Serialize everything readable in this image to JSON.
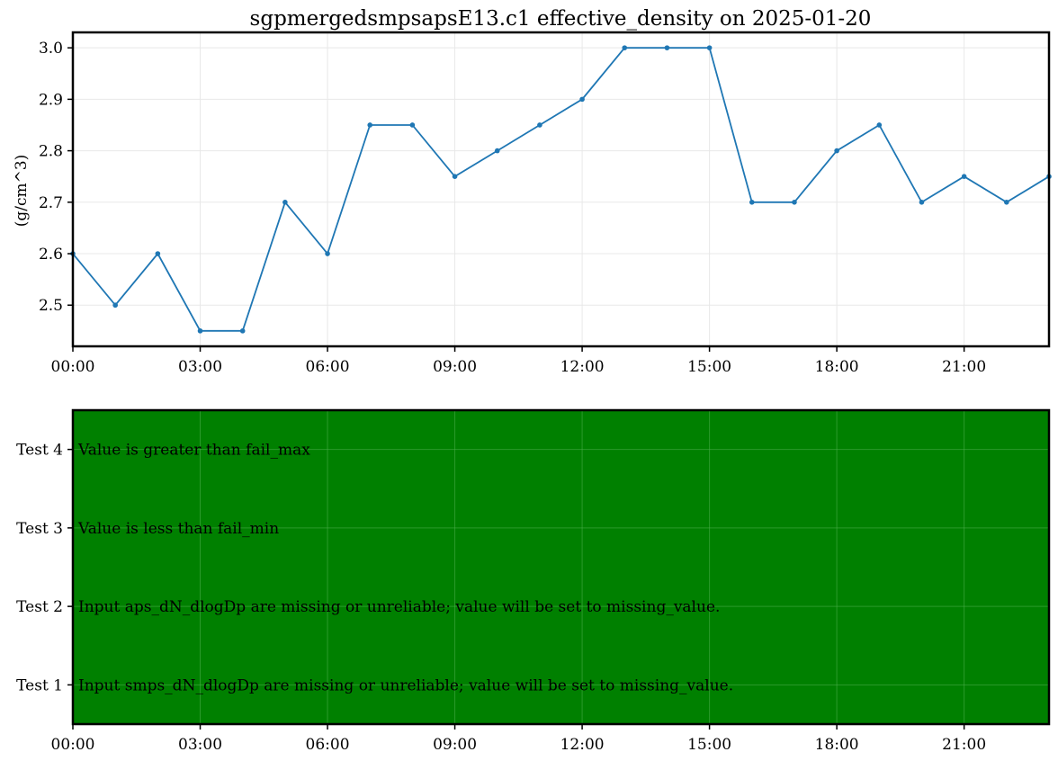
{
  "chart_data": [
    {
      "type": "line",
      "title": "sgpmergedsmpsapsE13.c1 effective_density on 2025-01-20",
      "xlabel": "",
      "ylabel": "(g/cm^3)",
      "x_ticks": [
        "00:00",
        "03:00",
        "06:00",
        "09:00",
        "12:00",
        "15:00",
        "18:00",
        "21:00"
      ],
      "y_ticks": [
        "2.5",
        "2.6",
        "2.7",
        "2.8",
        "2.9",
        "3.0"
      ],
      "xlim": [
        "00:00",
        "23:00"
      ],
      "ylim": [
        2.42,
        3.03
      ],
      "grid": true,
      "series": [
        {
          "color": "#1f77b4",
          "x": [
            "00:00",
            "01:00",
            "02:00",
            "03:00",
            "04:00",
            "05:00",
            "06:00",
            "07:00",
            "08:00",
            "09:00",
            "10:00",
            "11:00",
            "12:00",
            "13:00",
            "14:00",
            "15:00",
            "16:00",
            "17:00",
            "18:00",
            "19:00",
            "20:00",
            "21:00",
            "22:00",
            "23:00"
          ],
          "y": [
            2.6,
            2.5,
            2.6,
            2.45,
            2.45,
            2.7,
            2.6,
            2.85,
            2.85,
            2.75,
            2.8,
            2.85,
            2.9,
            3.0,
            3.0,
            3.0,
            2.7,
            2.7,
            2.8,
            2.85,
            2.7,
            2.75,
            2.7,
            2.75
          ]
        }
      ]
    },
    {
      "type": "heatmap",
      "title": "",
      "xlabel": "",
      "ylabel": "",
      "x_ticks": [
        "00:00",
        "03:00",
        "06:00",
        "09:00",
        "12:00",
        "15:00",
        "18:00",
        "21:00"
      ],
      "xlim": [
        "00:00",
        "23:00"
      ],
      "fill_color": "#008000",
      "grid": true,
      "tests": [
        {
          "label": "Test 4",
          "description": "Value is greater than fail_max"
        },
        {
          "label": "Test 3",
          "description": "Value is less than fail_min"
        },
        {
          "label": "Test 2",
          "description": "Input aps_dN_dlogDp are missing or unreliable; value will be set to missing_value."
        },
        {
          "label": "Test 1",
          "description": "Input smps_dN_dlogDp are missing or unreliable; value will be set to missing_value."
        }
      ]
    }
  ]
}
